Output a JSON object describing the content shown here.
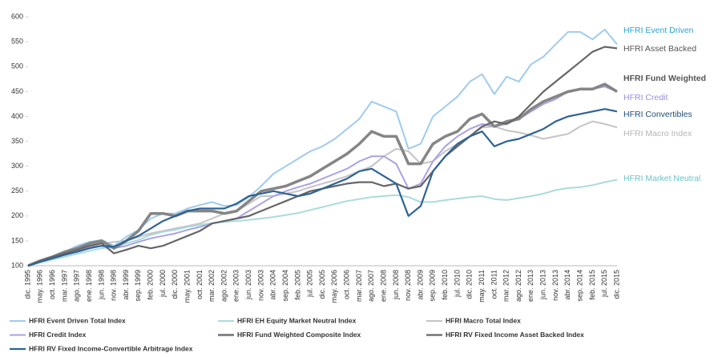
{
  "chart_data": {
    "type": "line",
    "categories": [
      "dic. 1995",
      "may. 1996",
      "oct. 1996",
      "mar. 1997",
      "ago. 1997",
      "ene. 1998",
      "jun. 1998",
      "nov. 1998",
      "abr. 1999",
      "sep. 1999",
      "feb. 2000",
      "jul. 2000",
      "dic. 2000",
      "may. 2001",
      "oct. 2001",
      "mar. 2002",
      "ago. 2002",
      "ene. 2003",
      "jun. 2003",
      "nov. 2003",
      "abr. 2004",
      "sep. 2004",
      "feb. 2005",
      "jul. 2005",
      "dic. 2005",
      "may. 2006",
      "oct. 2006",
      "mar. 2007",
      "ago. 2007",
      "ene. 2008",
      "jun. 2008",
      "nov. 2008",
      "abr. 2009",
      "sep. 2009",
      "feb. 2010",
      "jul. 2010",
      "dic. 2010",
      "may. 2011",
      "oct. 2011",
      "mar. 2012",
      "ago. 2012",
      "ene. 2013",
      "jun. 2013",
      "nov. 2013",
      "abr. 2014",
      "sep. 2014",
      "feb. 2015",
      "jul. 2015",
      "dic. 2015"
    ],
    "ylim": [
      100,
      610
    ],
    "yticks": [
      100,
      150,
      200,
      250,
      300,
      350,
      400,
      450,
      500,
      550,
      600
    ],
    "series": [
      {
        "name": "HFRI Event Driven Total Index",
        "end_label": "HFRI Event Driven",
        "color": "#9fcbf0",
        "label_color": "#2ba0d8",
        "width": 2,
        "values": [
          100,
          110,
          118,
          128,
          140,
          148,
          152,
          140,
          158,
          172,
          195,
          205,
          205,
          215,
          222,
          228,
          220,
          222,
          238,
          260,
          285,
          300,
          315,
          330,
          340,
          355,
          375,
          395,
          430,
          420,
          410,
          335,
          345,
          400,
          420,
          440,
          470,
          485,
          445,
          480,
          470,
          505,
          520,
          545,
          570,
          570,
          555,
          575,
          545
        ]
      },
      {
        "name": "HFRI EH Equity Market Neutral Index",
        "end_label": "HFRI Market Neutral",
        "color": "#aadbde",
        "label_color": "#6cc3c8",
        "width": 2,
        "values": [
          100,
          106,
          112,
          118,
          124,
          130,
          135,
          138,
          145,
          152,
          162,
          168,
          172,
          178,
          182,
          186,
          188,
          190,
          192,
          195,
          198,
          202,
          206,
          212,
          218,
          224,
          230,
          234,
          238,
          240,
          242,
          238,
          228,
          228,
          232,
          235,
          238,
          240,
          234,
          232,
          236,
          240,
          245,
          252,
          256,
          258,
          262,
          268,
          273
        ]
      },
      {
        "name": "HFRI Macro Total Index",
        "end_label": "HFRI Macro Index",
        "color": "#c4c4c4",
        "label_color": "#b5b5b5",
        "width": 2,
        "values": [
          100,
          108,
          115,
          125,
          132,
          140,
          145,
          148,
          150,
          158,
          165,
          170,
          175,
          180,
          185,
          195,
          205,
          210,
          225,
          240,
          240,
          245,
          250,
          258,
          265,
          272,
          280,
          290,
          300,
          320,
          335,
          330,
          305,
          310,
          330,
          345,
          360,
          378,
          380,
          372,
          368,
          362,
          355,
          360,
          365,
          380,
          390,
          385,
          378
        ]
      },
      {
        "name": "HFRI Credit Index",
        "end_label": "HFRI Credit",
        "color": "#aaa2e2",
        "label_color": "#9a8fe0",
        "width": 2,
        "values": [
          100,
          108,
          115,
          122,
          130,
          138,
          140,
          135,
          140,
          148,
          155,
          160,
          165,
          172,
          178,
          185,
          190,
          195,
          210,
          225,
          240,
          250,
          258,
          265,
          275,
          285,
          295,
          310,
          320,
          320,
          305,
          255,
          265,
          310,
          340,
          360,
          375,
          385,
          380,
          385,
          395,
          410,
          425,
          435,
          450,
          455,
          455,
          460,
          450
        ]
      },
      {
        "name": "HFRI Fund Weighted Composite Index",
        "end_label": "HFRI Fund Weighted",
        "color": "#858585",
        "label_color": "#555555",
        "width": 3.5,
        "bold": true,
        "values": [
          100,
          110,
          118,
          128,
          135,
          145,
          150,
          135,
          150,
          170,
          205,
          205,
          200,
          210,
          210,
          210,
          205,
          210,
          230,
          250,
          255,
          260,
          270,
          280,
          295,
          310,
          325,
          345,
          370,
          360,
          360,
          305,
          305,
          345,
          360,
          370,
          395,
          405,
          380,
          390,
          395,
          415,
          430,
          440,
          450,
          455,
          455,
          465,
          450
        ]
      },
      {
        "name": "HFRI RV Fixed Income Asset Backed Index",
        "end_label": "HFRI Asset Backed",
        "color": "#666666",
        "label_color": "#555555",
        "width": 2.2,
        "values": [
          100,
          110,
          118,
          125,
          132,
          140,
          145,
          125,
          132,
          140,
          135,
          140,
          150,
          160,
          170,
          185,
          190,
          195,
          200,
          210,
          220,
          230,
          240,
          250,
          255,
          260,
          265,
          268,
          268,
          260,
          265,
          255,
          260,
          290,
          320,
          340,
          360,
          380,
          390,
          385,
          400,
          425,
          450,
          470,
          490,
          510,
          530,
          540,
          537
        ]
      },
      {
        "name": "HFRI RV Fixed Income-Convertible Arbitrage Index",
        "end_label": "HFRI Convertibles",
        "color": "#2e6396",
        "label_color": "#1f4e79",
        "width": 2.2,
        "values": [
          100,
          108,
          115,
          122,
          128,
          135,
          140,
          138,
          150,
          160,
          175,
          190,
          200,
          210,
          215,
          215,
          215,
          225,
          240,
          245,
          250,
          245,
          240,
          245,
          255,
          265,
          275,
          290,
          295,
          280,
          265,
          200,
          220,
          290,
          320,
          345,
          360,
          370,
          340,
          350,
          355,
          365,
          375,
          390,
          400,
          405,
          410,
          415,
          410
        ]
      }
    ]
  }
}
